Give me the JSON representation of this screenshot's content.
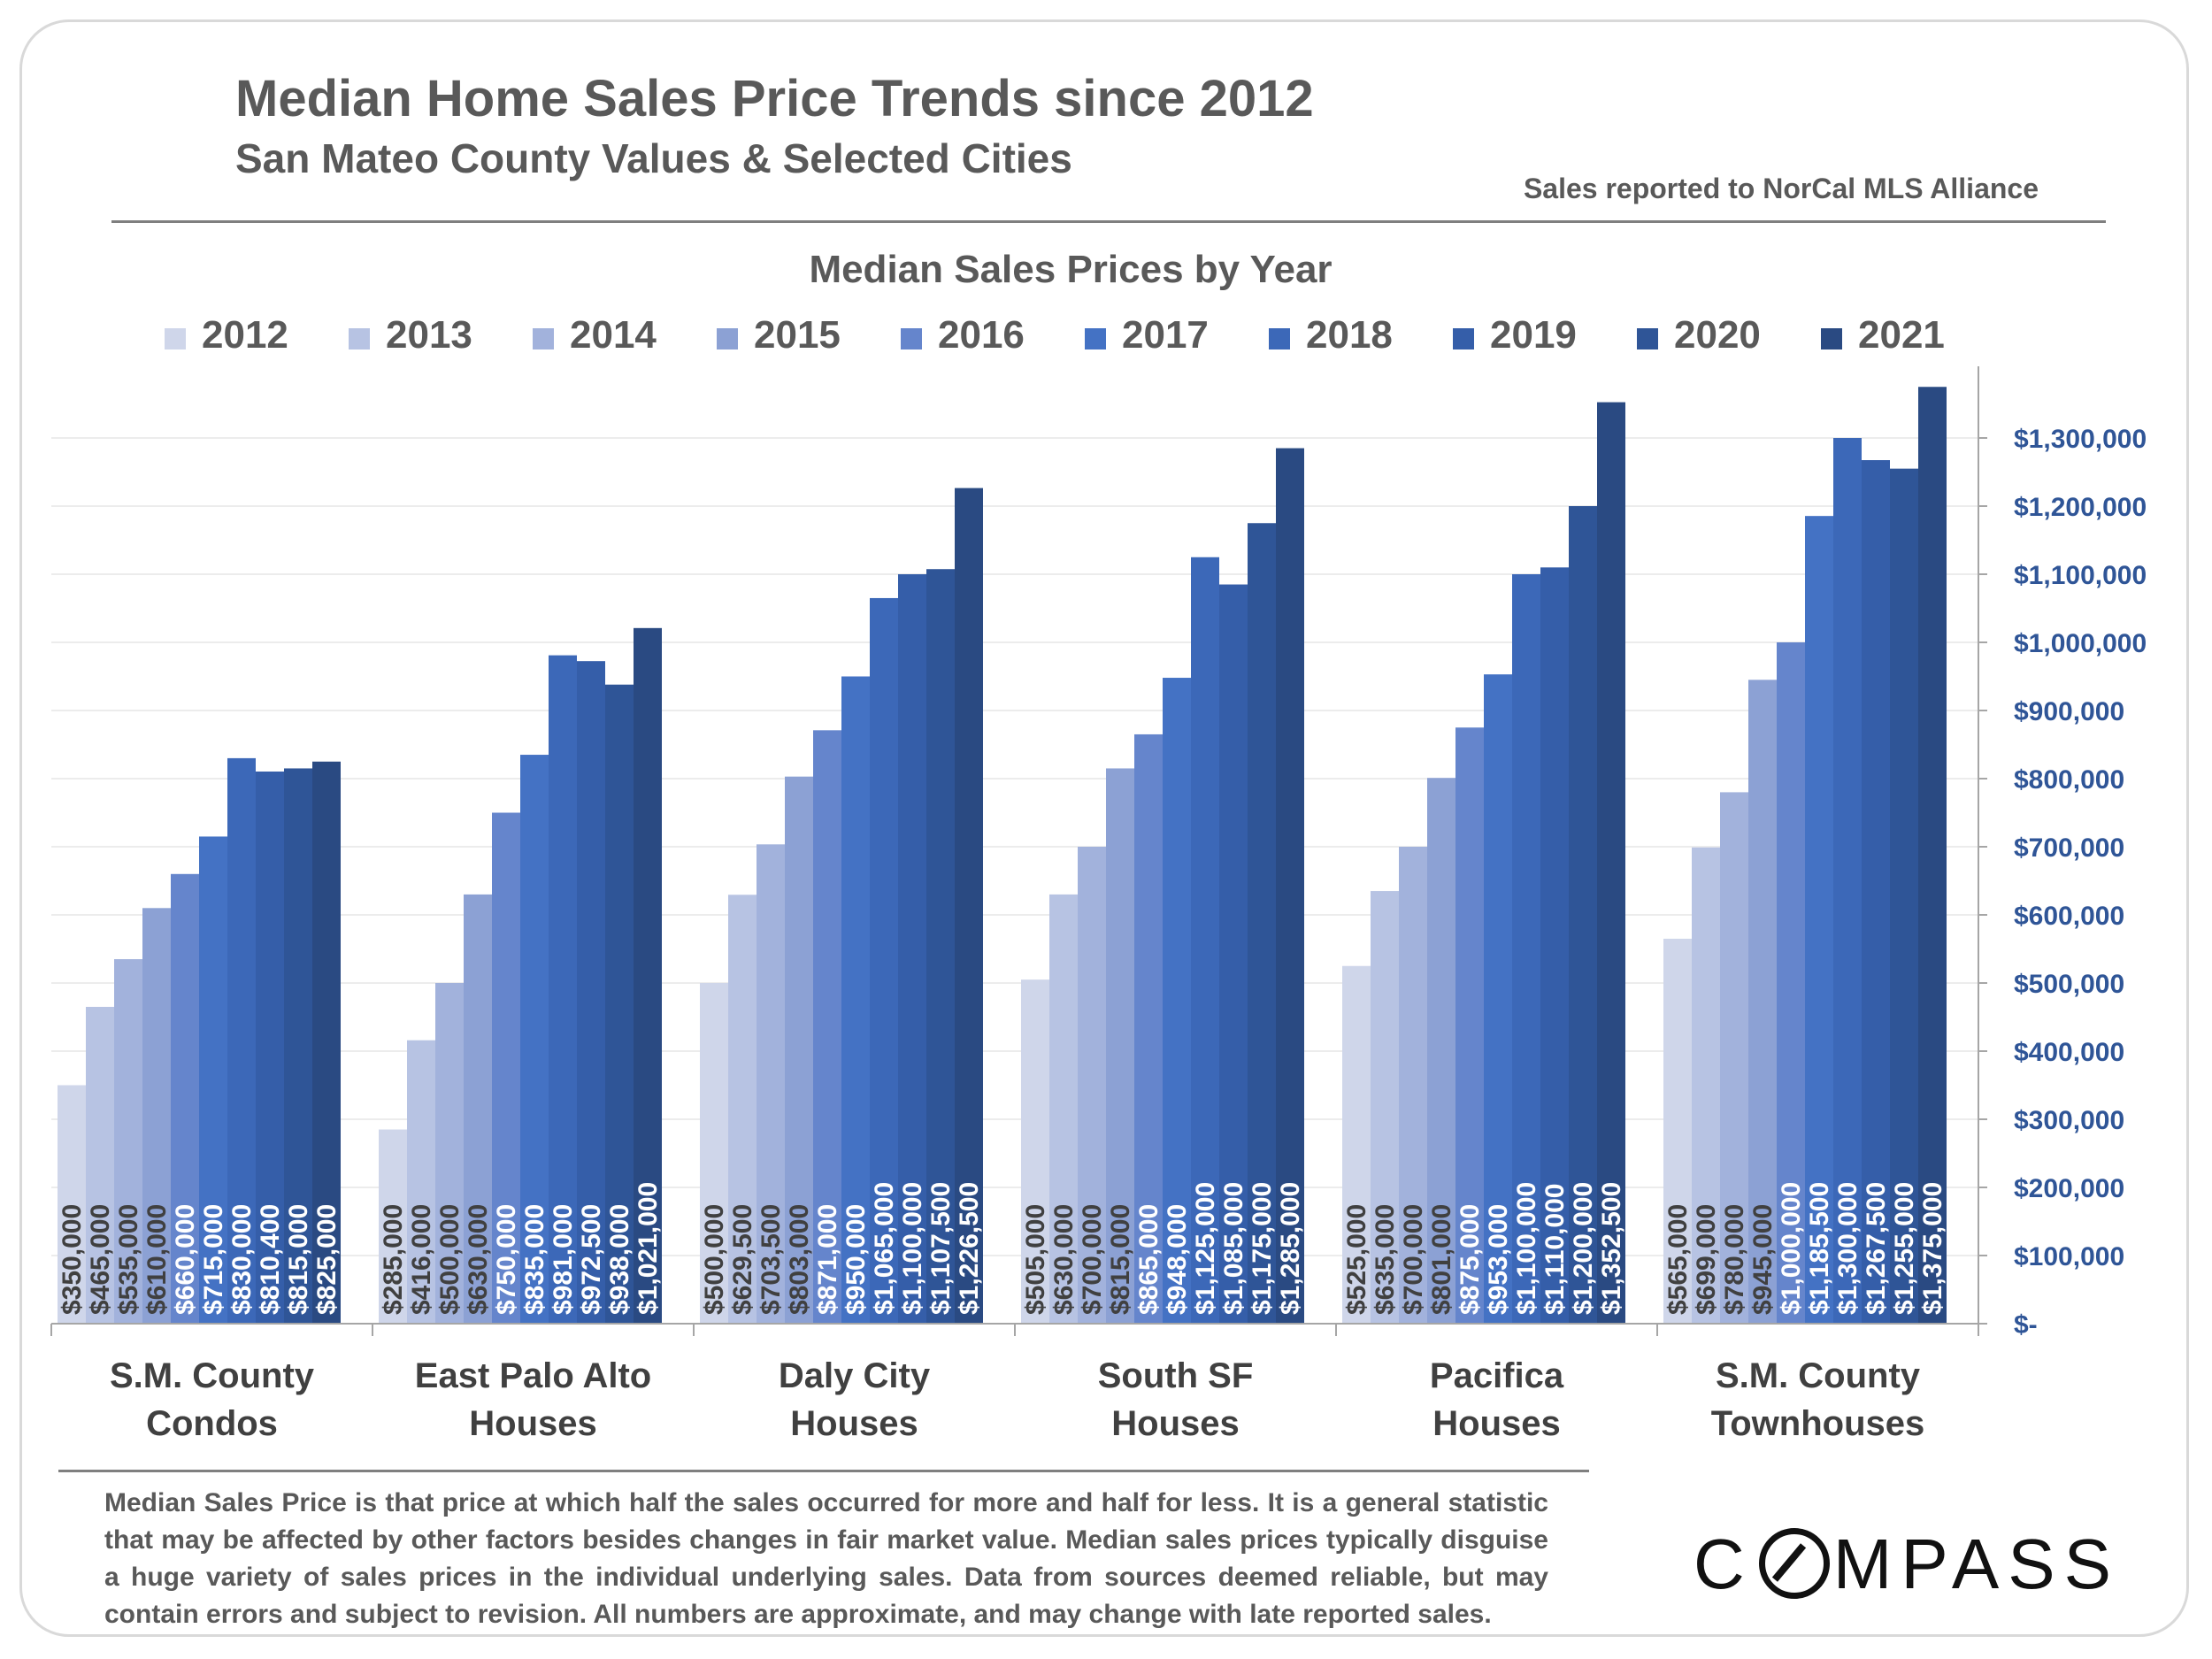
{
  "header": {
    "title": "Median Home Sales Price Trends since 2012",
    "subtitle": "San Mateo County Values & Selected Cities",
    "source": "Sales reported to NorCal MLS Alliance"
  },
  "footer": {
    "footnote": "Median Sales Price is that price at which half the sales occurred for more and half for less. It is a general statistic that may be affected by other factors besides changes in fair market value. Median sales prices typically disguise a huge variety of sales prices in the individual underlying sales. Data from sources deemed reliable, but may contain errors and subject to revision.  All numbers are approximate, and may change with late reported sales.",
    "logo_text": "COMPASS"
  },
  "chart_data": {
    "type": "bar",
    "title": "Median Sales Prices by Year",
    "categories": [
      [
        "S.M. County",
        "Condos"
      ],
      [
        "East Palo Alto",
        "Houses"
      ],
      [
        "Daly City",
        "Houses"
      ],
      [
        "South SF",
        "Houses"
      ],
      [
        "Pacifica",
        "Houses"
      ],
      [
        "S.M. County",
        "Townhouses"
      ]
    ],
    "series": [
      {
        "name": "2012",
        "color": "#cfd6ea",
        "values": [
          350000,
          285000,
          500000,
          505000,
          525000,
          565000
        ],
        "labels": [
          "$350,000",
          "$285,000",
          "$500,000",
          "$505,000",
          "$525,000",
          "$565,000"
        ]
      },
      {
        "name": "2013",
        "color": "#b7c3e3",
        "values": [
          465000,
          416000,
          629500,
          630000,
          635000,
          699000
        ],
        "labels": [
          "$465,000",
          "$416,000",
          "$629,500",
          "$630,000",
          "$635,000",
          "$699,000"
        ]
      },
      {
        "name": "2014",
        "color": "#a2b2dc",
        "values": [
          535000,
          500000,
          703500,
          700000,
          700000,
          780000
        ],
        "labels": [
          "$535,000",
          "$500,000",
          "$703,500",
          "$700,000",
          "$700,000",
          "$780,000"
        ]
      },
      {
        "name": "2015",
        "color": "#8ca1d4",
        "values": [
          610000,
          630000,
          803000,
          815000,
          801000,
          945000
        ],
        "labels": [
          "$610,000",
          "$630,000",
          "$803,000",
          "$815,000",
          "$801,000",
          "$945,000"
        ]
      },
      {
        "name": "2016",
        "color": "#6585cc",
        "values": [
          660000,
          750000,
          871000,
          865000,
          875000,
          1000000
        ],
        "labels": [
          "$660,000",
          "$750,000",
          "$871,000",
          "$865,000",
          "$875,000",
          "$1,000,000"
        ]
      },
      {
        "name": "2017",
        "color": "#4472c4",
        "values": [
          715000,
          835000,
          950000,
          948000,
          953000,
          1185500
        ],
        "labels": [
          "$715,000",
          "$835,000",
          "$950,000",
          "$948,000",
          "$953,000",
          "$1,185,500"
        ]
      },
      {
        "name": "2018",
        "color": "#3c68b8",
        "values": [
          830000,
          981000,
          1065000,
          1125000,
          1100000,
          1300000
        ],
        "labels": [
          "$830,000",
          "$981,000",
          "$1,065,000",
          "$1,125,000",
          "$1,100,000",
          "$1,300,000"
        ]
      },
      {
        "name": "2019",
        "color": "#355ea9",
        "values": [
          810400,
          972500,
          1100000,
          1085000,
          1110000,
          1267500
        ],
        "labels": [
          "$810,400",
          "$972,500",
          "$1,100,000",
          "$1,085,000",
          "$1,110,000",
          "$1,267,500"
        ]
      },
      {
        "name": "2020",
        "color": "#2f5597",
        "values": [
          815000,
          938000,
          1107500,
          1175000,
          1200000,
          1255000
        ],
        "labels": [
          "$815,000",
          "$938,000",
          "$1,107,500",
          "$1,175,000",
          "$1,200,000",
          "$1,255,000"
        ]
      },
      {
        "name": "2021",
        "color": "#2a4a82",
        "values": [
          825000,
          1021000,
          1226500,
          1285000,
          1352500,
          1375000
        ],
        "labels": [
          "$825,000",
          "$1,021,000",
          "$1,226,500",
          "$1,285,000",
          "$1,352,500",
          "$1,375,000"
        ]
      }
    ],
    "ylim": [
      0,
      1400000
    ],
    "yticks": [
      0,
      100000,
      200000,
      300000,
      400000,
      500000,
      600000,
      700000,
      800000,
      900000,
      1000000,
      1100000,
      1200000,
      1300000
    ],
    "ytick_labels": [
      "$-",
      "$100,000",
      "$200,000",
      "$300,000",
      "$400,000",
      "$500,000",
      "$600,000",
      "$700,000",
      "$800,000",
      "$900,000",
      "$1,000,000",
      "$1,100,000",
      "$1,200,000",
      "$1,300,000"
    ],
    "y_axis_side": "right",
    "y_axis_color": "#2f5597",
    "grid": true,
    "legend_position": "top"
  }
}
